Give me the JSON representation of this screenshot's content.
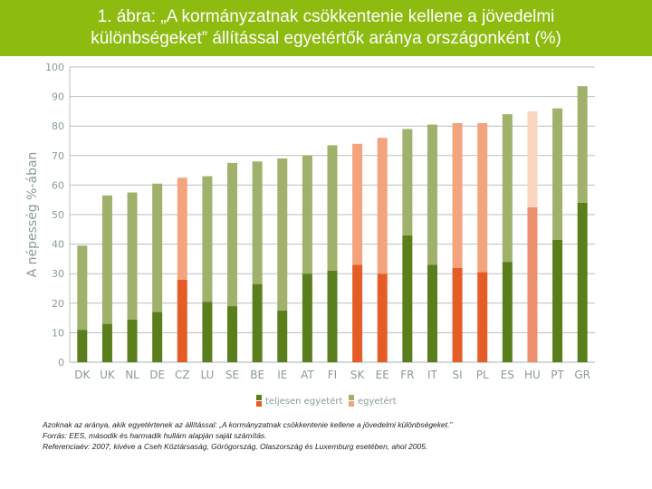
{
  "title": {
    "line1": "1. ábra: „A kormányzatnak csökkentenie kellene a jövedelmi",
    "line2": "különbségeket” állítással egyetértők aránya  országonként (%)"
  },
  "colors": {
    "title_bg": "#8dbb10",
    "green_dark": "#5a7e1c",
    "green_light": "#9fb16b",
    "orange_dark": "#e65c27",
    "orange_light": "#f4a47d",
    "hu_dark": "#ee8f6e",
    "hu_light": "#fbd4bf",
    "axis": "#b7c0c0",
    "tick_text": "#8a9a9a"
  },
  "chart_data": {
    "type": "bar",
    "stacked": true,
    "ylabel": "A népesség %-ában",
    "ylim": [
      0,
      100
    ],
    "yticks": [
      0,
      10,
      20,
      30,
      40,
      50,
      60,
      70,
      80,
      90,
      100
    ],
    "categories": [
      "DK",
      "UK",
      "NL",
      "DE",
      "CZ",
      "LU",
      "SE",
      "BE",
      "IE",
      "AT",
      "FI",
      "SK",
      "EE",
      "FR",
      "IT",
      "SI",
      "PL",
      "ES",
      "HU",
      "PT",
      "GR"
    ],
    "highlight": [
      "orange",
      "orange",
      "orange",
      "orange",
      "orange",
      "hu"
    ],
    "highlight_categories": [
      "CZ",
      "SK",
      "EE",
      "SI",
      "PL",
      "HU"
    ],
    "series": [
      {
        "name": "teljesen egyetért",
        "values": [
          11,
          13,
          14.5,
          17,
          28,
          20.5,
          19,
          26.5,
          17.5,
          30,
          31,
          33,
          30,
          43,
          33,
          32,
          30.5,
          34,
          52.5,
          41.5,
          54
        ]
      },
      {
        "name": "egyetért",
        "values": [
          28.5,
          43.5,
          43,
          43.5,
          34.5,
          42.5,
          48.5,
          41.5,
          51.5,
          40,
          42.5,
          41,
          46,
          36,
          47.5,
          49,
          50.5,
          50,
          32.5,
          44.5,
          39.5
        ]
      }
    ],
    "legend_position": "bottom"
  },
  "footnote": {
    "line1": "Azoknak az aránya, akik egyetértenek az állítással: „A kormányzatnak csökkentenie kellene a jövedelmi különbségeket.”",
    "line2": "Forrás: EES, második és harmadik hullám alapján saját számítás.",
    "line3": "Referenciaév: 2007, kivéve a Cseh Köztársaság, Görögország, Olaszország és Luxemburg esetében, ahol 2005."
  }
}
